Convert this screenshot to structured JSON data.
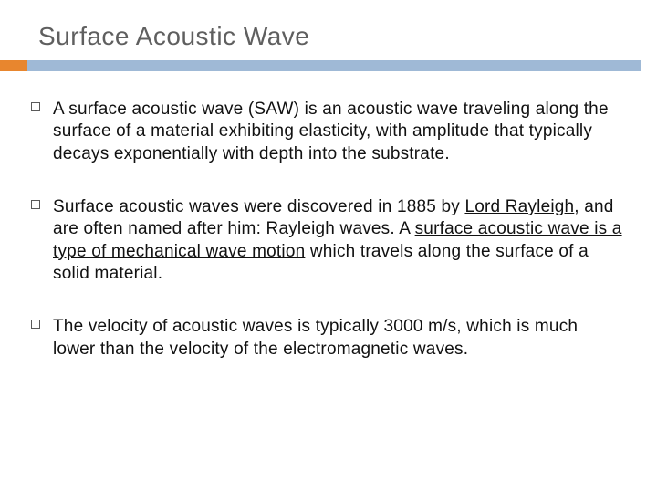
{
  "slide": {
    "title": "Surface Acoustic Wave",
    "accent_color": "#e8862e",
    "rule_color": "#9fb9d6",
    "title_color": "#5f5f5f",
    "title_fontsize": 28,
    "body_fontsize": 19,
    "background_color": "#ffffff",
    "bullets": [
      {
        "text": "A surface acoustic wave (SAW) is an acoustic wave traveling along the surface of a material exhibiting elasticity, with amplitude that typically decays exponentially with depth into the substrate."
      },
      {
        "text_pre": "Surface acoustic waves were discovered in 1885 by ",
        "underlined_1": "Lord Rayleigh",
        "text_mid": ", and are often named after him: Rayleigh waves. A ",
        "underlined_2": "surface acoustic wave is a type of mechanical wave motion",
        "text_post": " which travels along the surface of a solid material."
      },
      {
        "text": "The velocity of acoustic waves is typically 3000 m/s, which is much lower than the velocity of the electromagnetic waves."
      }
    ]
  }
}
